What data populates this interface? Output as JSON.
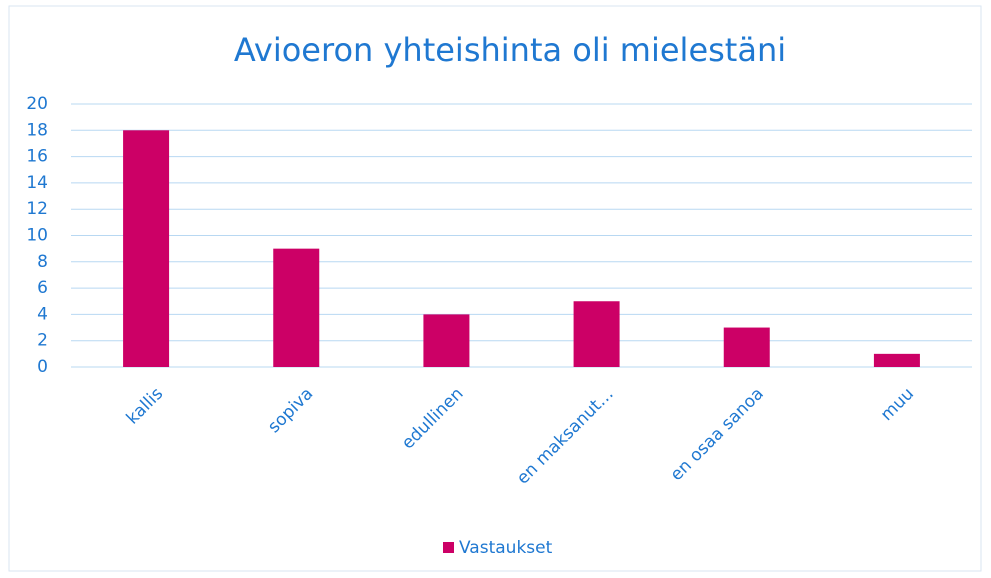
{
  "chart_data": {
    "type": "bar",
    "title": "Avioeron yhteishinta oli mielestäni",
    "categories": [
      "kallis",
      "sopiva",
      "edullinen",
      "en maksanut…",
      "en osaa sanoa",
      "muu"
    ],
    "series": [
      {
        "name": "Vastaukset",
        "color": "#cc0066",
        "values": [
          18,
          9,
          4,
          5,
          3,
          1
        ]
      }
    ],
    "ylim": [
      0,
      20
    ],
    "yticks": [
      0,
      2,
      4,
      6,
      8,
      10,
      12,
      14,
      16,
      18,
      20
    ],
    "grid": true,
    "legend": "bottom"
  }
}
